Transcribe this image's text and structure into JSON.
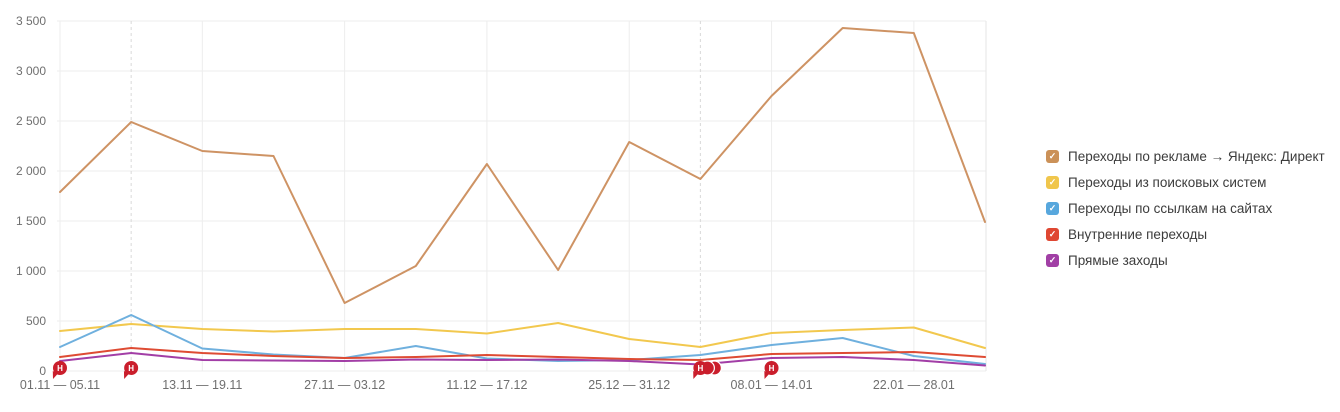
{
  "page": {
    "background": "#ffffff"
  },
  "chart_data": {
    "type": "line",
    "title": "",
    "xlabel": "",
    "ylabel": "",
    "ylim": [
      0,
      3500
    ],
    "grid": true,
    "legend_position": "right",
    "n_points": 14,
    "x_tick_labels": [
      "01.11 — 05.11",
      "13.11 — 19.11",
      "27.11 — 03.12",
      "11.12 — 17.12",
      "25.12 — 31.12",
      "08.01 — 14.01",
      "22.01 — 28.01"
    ],
    "x_tick_weeks": [
      0,
      2,
      4,
      6,
      8,
      10,
      12
    ],
    "y_ticks": [
      {
        "value": 0,
        "label": "0"
      },
      {
        "value": 500,
        "label": "500"
      },
      {
        "value": 1000,
        "label": "1 000"
      },
      {
        "value": 1500,
        "label": "1 500"
      },
      {
        "value": 2000,
        "label": "2 000"
      },
      {
        "value": 2500,
        "label": "2 500"
      },
      {
        "value": 3000,
        "label": "3 000"
      },
      {
        "value": 3500,
        "label": "3 500"
      }
    ],
    "dashed_guide_weeks": [
      1,
      9
    ],
    "series": [
      {
        "id": "ad",
        "name": "Переходы по рекламе → Яндекс: Директ",
        "color": "#CE9364",
        "values": [
          1790,
          2490,
          2200,
          2150,
          680,
          1050,
          2070,
          1010,
          2290,
          1920,
          2750,
          3430,
          3380,
          1490
        ]
      },
      {
        "id": "search",
        "name": "Переходы из поисковых систем",
        "color": "#F2C84E",
        "values": [
          400,
          470,
          420,
          395,
          420,
          420,
          375,
          480,
          320,
          240,
          380,
          410,
          435,
          230
        ]
      },
      {
        "id": "links",
        "name": "Переходы по ссылкам на сайтах",
        "color": "#6FB0DE",
        "values": [
          240,
          560,
          225,
          165,
          130,
          250,
          125,
          100,
          110,
          160,
          260,
          330,
          150,
          70
        ]
      },
      {
        "id": "internal",
        "name": "Внутренние переходы",
        "color": "#DE4B33",
        "values": [
          140,
          230,
          180,
          150,
          130,
          140,
          160,
          140,
          120,
          110,
          170,
          180,
          190,
          140
        ]
      },
      {
        "id": "direct",
        "name": "Прямые заходы",
        "color": "#A23EA6",
        "values": [
          100,
          180,
          110,
          105,
          100,
          115,
          110,
          115,
          100,
          65,
          130,
          140,
          110,
          55
        ]
      }
    ],
    "annotations": [
      {
        "week": 0,
        "label": "Н",
        "count": 1
      },
      {
        "week": 1,
        "label": "Н",
        "count": 1
      },
      {
        "week": 9,
        "label": "Н",
        "count": 3
      },
      {
        "week": 10,
        "label": "Н",
        "count": 1
      }
    ]
  },
  "legend": {
    "check_glyph": "✓",
    "items": [
      {
        "label": "Переходы по рекламе → Яндекс: Директ",
        "color": "#CB9158"
      },
      {
        "label": "Переходы из поисковых систем",
        "color": "#F0C64C"
      },
      {
        "label": "Переходы по ссылкам на сайтах",
        "color": "#57A7DD"
      },
      {
        "label": "Внутренние переходы",
        "color": "#DF4732"
      },
      {
        "label": "Прямые заходы",
        "color": "#A13FA5"
      }
    ]
  },
  "annotation_marker": {
    "color": "#CA1E2C",
    "text_color": "#ffffff"
  },
  "axis_style": {
    "tick_color": "#6f6f6f",
    "grid_color": "#ededed",
    "dashed_color": "#d9d9d9",
    "border_color": "#e6e6e6"
  }
}
